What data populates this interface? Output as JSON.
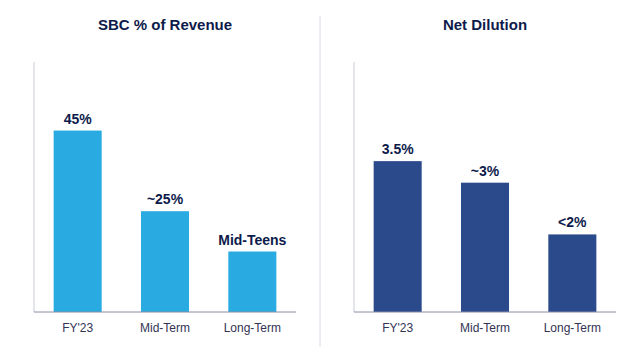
{
  "chart_data": [
    {
      "type": "bar",
      "title": "SBC % of Revenue",
      "categories": [
        "FY'23",
        "Mid-Term",
        "Long-Term"
      ],
      "values": [
        45,
        25,
        15
      ],
      "value_labels": [
        "45%",
        "~25%",
        "Mid-Teens"
      ],
      "color": "#29ABE2",
      "ylim": [
        0,
        62
      ],
      "tick_labels": "x"
    },
    {
      "type": "bar",
      "title": "Net Dilution",
      "categories": [
        "FY'23",
        "Mid-Term",
        "Long-Term"
      ],
      "values": [
        3.5,
        3.0,
        1.8
      ],
      "value_labels": [
        "3.5%",
        "~3%",
        "<2%"
      ],
      "color": "#2B4A8B",
      "ylim": [
        0,
        5.8
      ],
      "tick_labels": "x"
    }
  ]
}
